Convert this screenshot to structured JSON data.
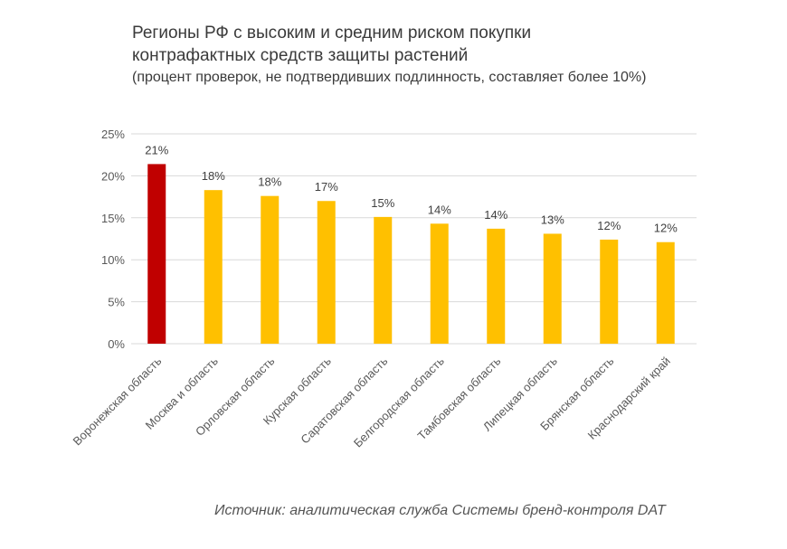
{
  "chart_data": {
    "type": "bar",
    "title": "Регионы РФ с высоким и средним риском покупки",
    "title_line2": "контрафактных средств защиты растений",
    "subtitle": "(процент проверок, не подтвердивших подлинность, составляет более 10%)",
    "xlabel": "",
    "ylabel": "",
    "ylim": [
      0,
      25
    ],
    "yticks": [
      "0%",
      "5%",
      "10%",
      "15%",
      "20%",
      "25%"
    ],
    "grid": true,
    "categories": [
      "Воронежская область",
      "Москва и область",
      "Орловская область",
      "Курская область",
      "Саратовская область",
      "Белгородская область",
      "Тамбовская область",
      "Липецкая область",
      "Брянская область",
      "Краснодарский край"
    ],
    "values": [
      21.4,
      18.3,
      17.6,
      17.0,
      15.1,
      14.3,
      13.7,
      13.1,
      12.4,
      12.1
    ],
    "data_labels": [
      "21%",
      "18%",
      "18%",
      "17%",
      "15%",
      "14%",
      "14%",
      "13%",
      "12%",
      "12%"
    ],
    "colors": {
      "highlight": "#c00000",
      "default": "#ffc000"
    },
    "source": "Источник: аналитическая служба Системы бренд-контроля DAT"
  }
}
